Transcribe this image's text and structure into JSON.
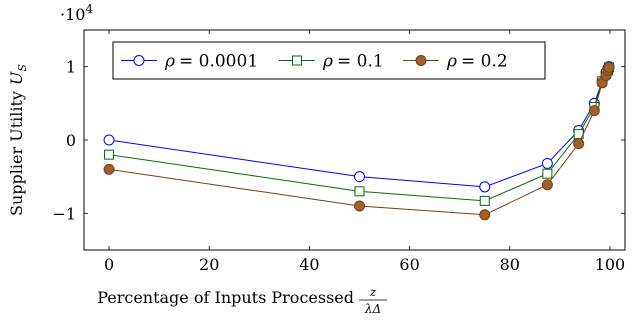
{
  "chart_data": {
    "type": "line",
    "title": "",
    "xlabel": "Percentage of Inputs Processed",
    "xlabel_fraction": {
      "numerator": "z",
      "denominator": "λΔ"
    },
    "ylabel": "Supplier Utility",
    "ylabel_symbol": "U",
    "ylabel_subscript": "S",
    "y_multiplier": {
      "base": "·10",
      "exponent": "4"
    },
    "xlim": [
      -5,
      103
    ],
    "ylim": [
      -1.5,
      1.5
    ],
    "xticks": [
      0,
      20,
      40,
      60,
      80,
      100
    ],
    "yticks": [
      -1,
      0,
      1
    ],
    "ytick_labels": [
      "−1",
      "0",
      "1"
    ],
    "grid": false,
    "legend_position": "top-center",
    "series": [
      {
        "name": "ρ = 0.0001",
        "legend_symbol": "ρ",
        "legend_value": "= 0.0001",
        "color": "#0000ff",
        "marker": "circle",
        "marker_fill": "none",
        "x": [
          0,
          50,
          75,
          87.5,
          93.75,
          96.875,
          98.4375,
          99.21875,
          99.609375,
          99.8046875
        ],
        "y": [
          0,
          -0.5,
          -0.64,
          -0.32,
          0.13,
          0.5,
          0.8,
          0.92,
          0.98,
          1.0
        ]
      },
      {
        "name": "ρ = 0.1",
        "legend_symbol": "ρ",
        "legend_value": "= 0.1",
        "color": "#007000",
        "marker": "square",
        "marker_fill": "none",
        "x": [
          0,
          50,
          75,
          87.5,
          93.75,
          96.875,
          98.4375,
          99.21875,
          99.609375,
          99.8046875
        ],
        "y": [
          -0.2,
          -0.7,
          -0.83,
          -0.46,
          0.08,
          0.45,
          0.8,
          0.9,
          0.95,
          0.99
        ]
      },
      {
        "name": "ρ = 0.2",
        "legend_symbol": "ρ",
        "legend_value": "= 0.2",
        "color": "#7a3d10",
        "marker": "circle",
        "marker_fill": "#a0622d",
        "x": [
          0,
          50,
          75,
          87.5,
          93.75,
          96.875,
          98.4375,
          99.21875,
          99.609375,
          99.8046875
        ],
        "y": [
          -0.4,
          -0.9,
          -1.02,
          -0.61,
          -0.05,
          0.4,
          0.78,
          0.88,
          0.95,
          0.99
        ]
      }
    ]
  }
}
